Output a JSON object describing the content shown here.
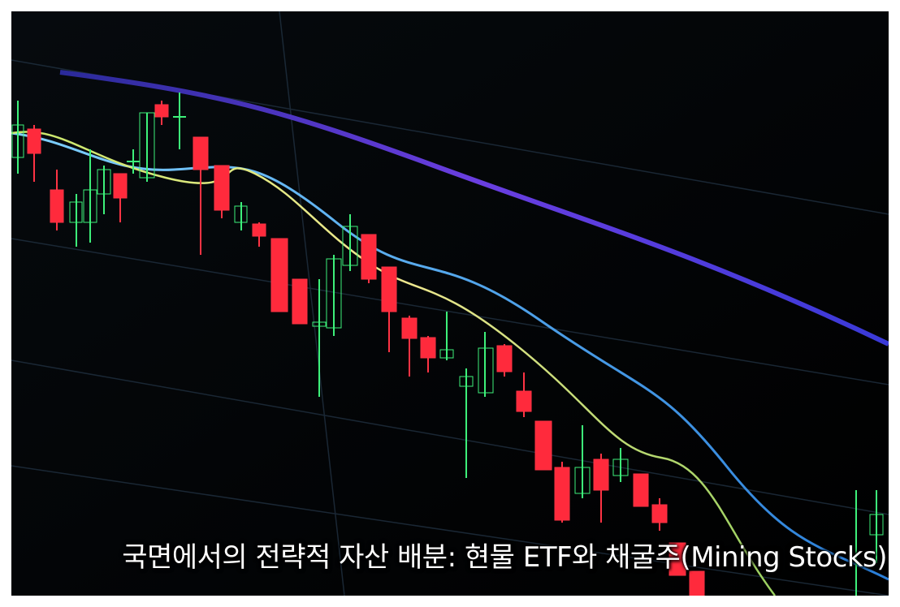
{
  "caption": "국면에서의 전략적 자산 배분: 현물 ETF와 채굴주(Mining Stocks)"
}
